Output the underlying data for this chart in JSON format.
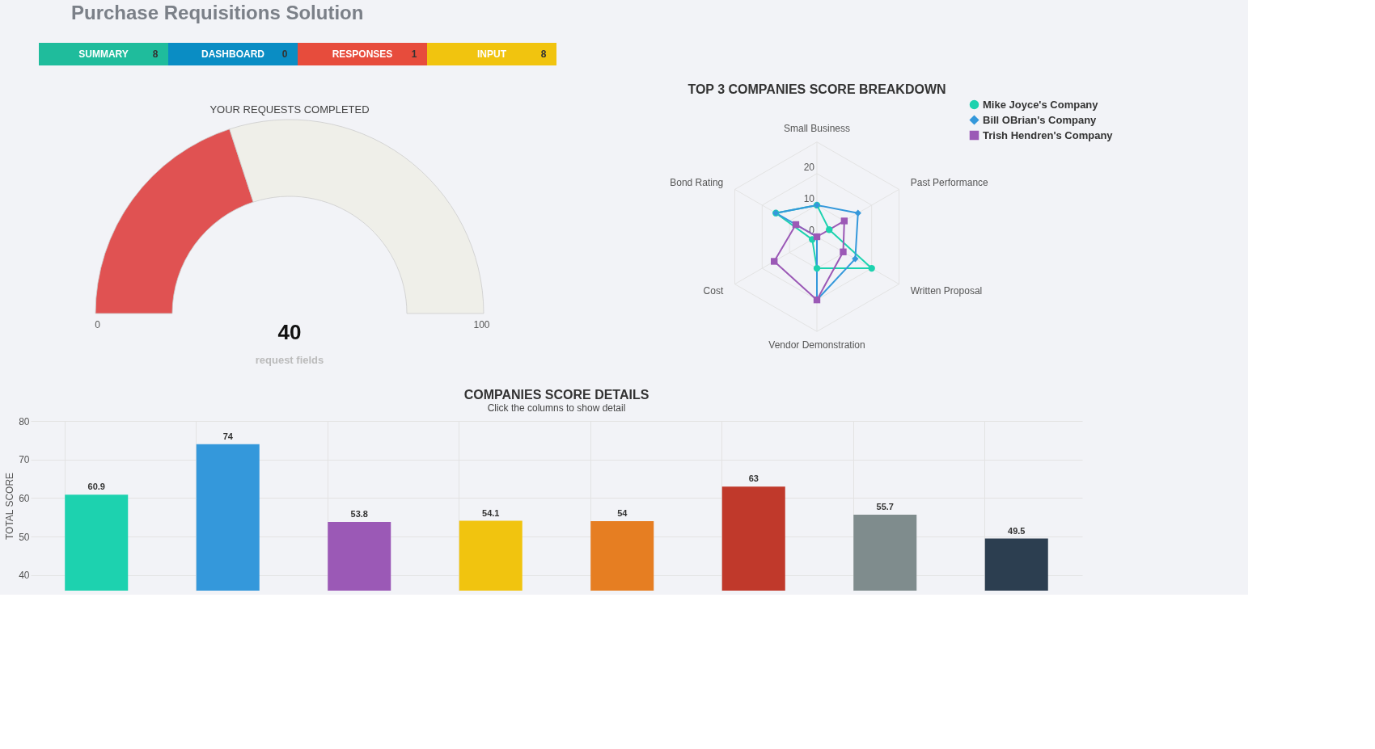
{
  "chart_data": [
    {
      "type": "other",
      "title": "Purchase Requisitions Solution",
      "categories": [
        "SUMMARY",
        "DASHBOARD",
        "RESPONSES",
        "INPUT"
      ],
      "values": [
        8,
        0,
        1,
        8
      ],
      "colors": [
        "#1fbc9c",
        "#0a8dc4",
        "#e74c3c",
        "#f1c40f"
      ],
      "data_labels": true
    },
    {
      "type": "donut",
      "title": "YOUR REQUESTS COMPLETED",
      "categories": [
        null,
        null
      ],
      "values": [
        40,
        60
      ],
      "colors": [
        "#e05252",
        "#efefe9"
      ],
      "annotations": [
        "0",
        "100",
        "40",
        "request fields"
      ]
    },
    {
      "type": "radar",
      "title": "TOP 3 COMPANIES SCORE BREAKDOWN",
      "categories": [
        "Small Business",
        "Past Performance",
        "Written Proposal",
        "Vendor Demonstration",
        "Cost",
        "Bond Rating"
      ],
      "ylim": [
        0,
        30
      ],
      "yticks": [
        0,
        10,
        20
      ],
      "grid": true,
      "legend": "top right",
      "series": [
        {
          "name": "Mike Joyce's Company",
          "color": "#1dd2af",
          "marker": "circle",
          "values": [
            10,
            4.5,
            20,
            10,
            1.7,
            15
          ]
        },
        {
          "name": "Bill OBrian's Company",
          "color": "#3498db",
          "marker": "diamond",
          "values": [
            10,
            15,
            14,
            20,
            0,
            15
          ]
        },
        {
          "name": "Trish Hendren's Company",
          "color": "#9b59b6",
          "marker": "square",
          "values": [
            0,
            10,
            9.6,
            20,
            15.6,
            7.7
          ]
        }
      ]
    },
    {
      "type": "bar",
      "title": "COMPANIES SCORE DETAILS",
      "subtitle": "Click the columns to show detail",
      "ylabel": "TOTAL SCORE",
      "categories": [
        null,
        null,
        null,
        null,
        null,
        null,
        null,
        null
      ],
      "values": [
        60.9,
        74,
        53.8,
        54.1,
        54,
        63,
        55.7,
        49.5
      ],
      "colors": [
        "#1dd2af",
        "#3498db",
        "#9b59b6",
        "#f1c40f",
        "#e67e22",
        "#c0392b",
        "#7f8c8d",
        "#2c3e50"
      ],
      "ylim": [
        36,
        80
      ],
      "yticks": [
        40,
        50,
        60,
        70,
        80
      ],
      "grid": true,
      "data_labels": true
    }
  ]
}
